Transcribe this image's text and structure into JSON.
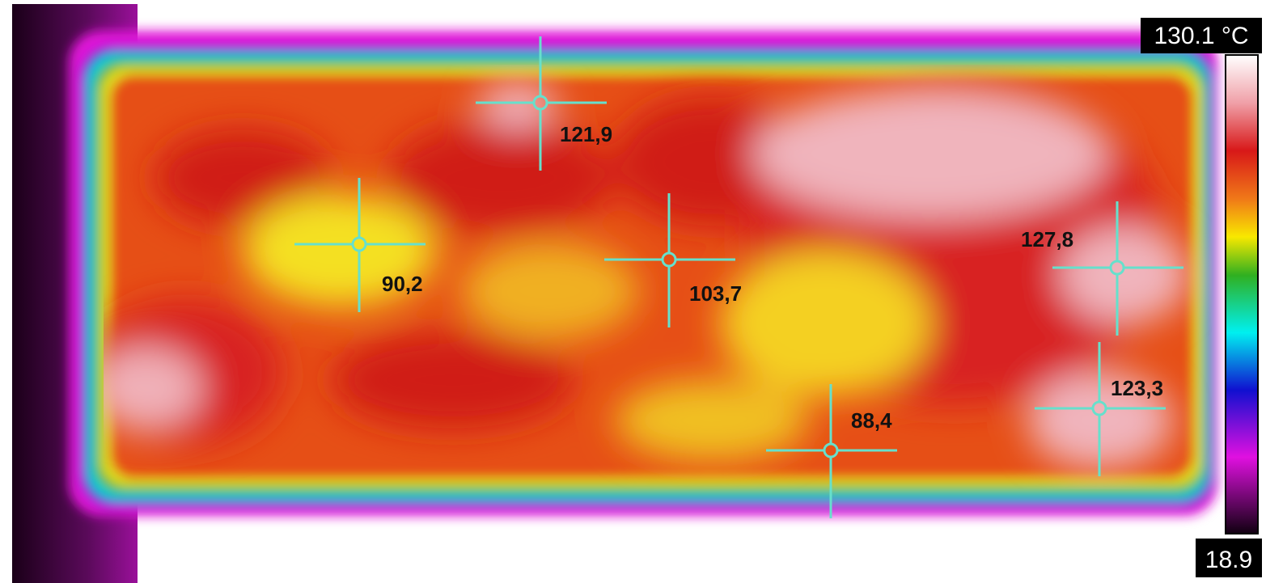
{
  "scale": {
    "max_label": "130.1 °C",
    "min_label": "18.9"
  },
  "spots": [
    {
      "label": "121,9"
    },
    {
      "label": "90,2"
    },
    {
      "label": "103,7"
    },
    {
      "label": "127,8"
    },
    {
      "label": "123,3"
    },
    {
      "label": "88,4"
    }
  ]
}
